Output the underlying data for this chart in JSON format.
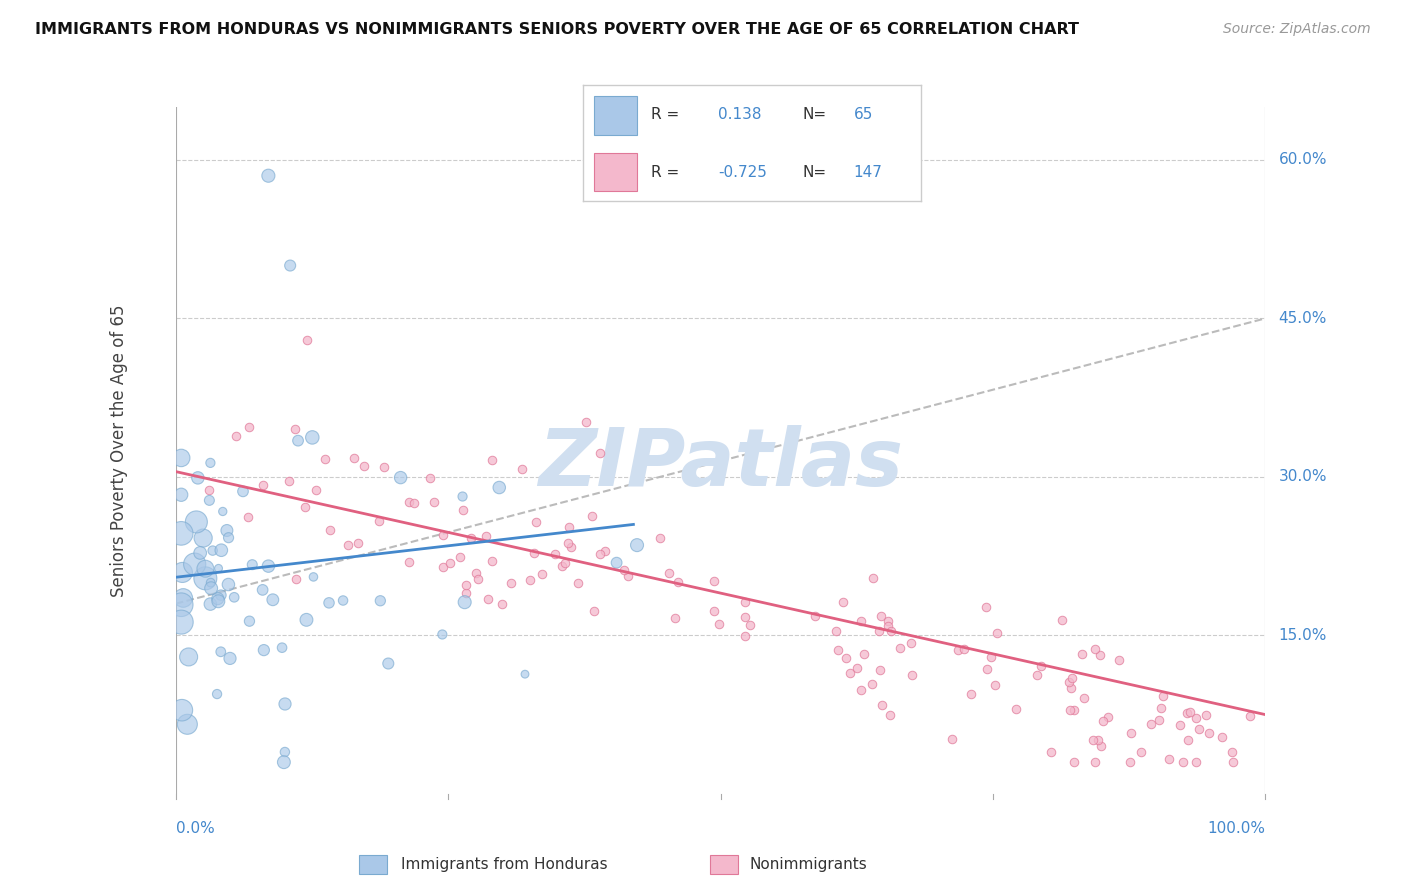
{
  "title": "IMMIGRANTS FROM HONDURAS VS NONIMMIGRANTS SENIORS POVERTY OVER THE AGE OF 65 CORRELATION CHART",
  "source": "Source: ZipAtlas.com",
  "ylabel": "Seniors Poverty Over the Age of 65",
  "xlim": [
    0.0,
    1.0
  ],
  "ylim": [
    0.0,
    0.65
  ],
  "y_tick_labels_right": [
    "60.0%",
    "45.0%",
    "30.0%",
    "15.0%"
  ],
  "y_tick_values_right": [
    0.6,
    0.45,
    0.3,
    0.15
  ],
  "legend_blue_r": "0.138",
  "legend_blue_n": "65",
  "legend_pink_r": "-0.725",
  "legend_pink_n": "147",
  "blue_color": "#aac8e8",
  "pink_color": "#f4b8cc",
  "blue_edge_color": "#7aaad0",
  "pink_edge_color": "#e07898",
  "blue_line_color": "#4488cc",
  "pink_line_color": "#e06080",
  "trend_line_color": "#bbbbbb",
  "label_color": "#4488cc",
  "watermark_color": "#d0dff0",
  "background_color": "#ffffff",
  "grid_color": "#cccccc"
}
